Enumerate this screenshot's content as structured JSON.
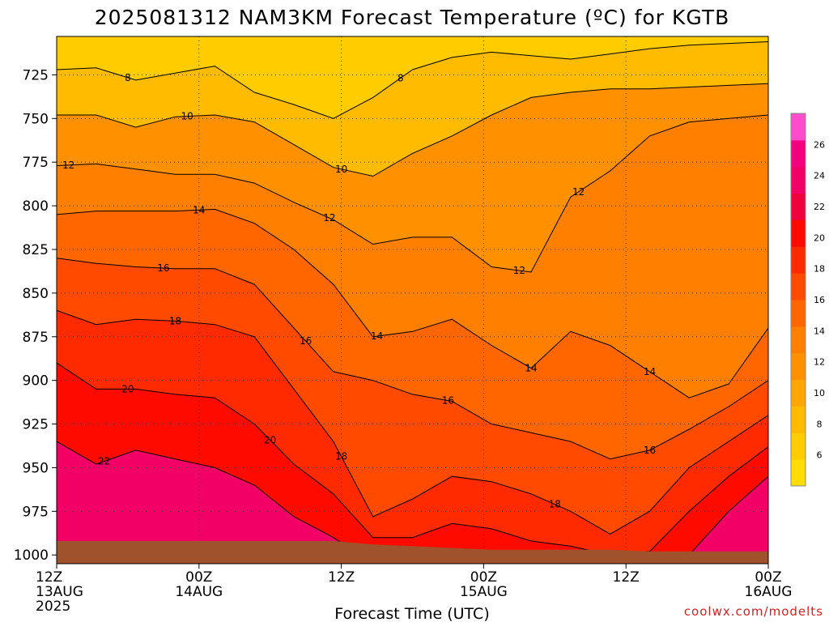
{
  "title": "2025081312 NAM3KM Forecast Temperature (ºC) for KGTB",
  "credit": "coolwx.com/modelts",
  "chart_data": {
    "type": "heatmap",
    "title": "2025081312 NAM3KM Forecast Temperature (ºC) for KGTB",
    "xlabel": "Forecast Time (UTC)",
    "ylabel": "",
    "x_ticks": [
      {
        "hours": 0,
        "lines": [
          "12Z",
          "13AUG",
          "2025"
        ]
      },
      {
        "hours": 12,
        "lines": [
          "00Z",
          "14AUG"
        ]
      },
      {
        "hours": 24,
        "lines": [
          "12Z"
        ]
      },
      {
        "hours": 36,
        "lines": [
          "00Z",
          "15AUG"
        ]
      },
      {
        "hours": 48,
        "lines": [
          "12Z"
        ]
      },
      {
        "hours": 60,
        "lines": [
          "00Z",
          "16AUG"
        ]
      }
    ],
    "y_ticks": [
      725,
      750,
      775,
      800,
      825,
      850,
      875,
      900,
      925,
      950,
      975,
      1000
    ],
    "xlim_hours": [
      0,
      60
    ],
    "ylim_hpa": [
      1005,
      703
    ],
    "grid": true,
    "colorbar": {
      "ticks": [
        6,
        8,
        10,
        12,
        14,
        16,
        18,
        20,
        22,
        24,
        26
      ],
      "range": [
        4,
        28
      ],
      "colors": [
        "#ffdd00",
        "#ffcc00",
        "#ffbb00",
        "#ffa600",
        "#ff9100",
        "#ff7f00",
        "#ff6600",
        "#ff4a00",
        "#ff2a00",
        "#ff0a00",
        "#f0003c",
        "#f20066",
        "#f5007f",
        "#ff4ccc"
      ]
    },
    "ground_color": "#a0522d",
    "contours": [
      {
        "value": 8,
        "hpa": [
          722,
          721,
          728,
          724,
          720,
          735,
          742,
          750,
          738,
          722,
          715,
          712,
          714,
          716,
          713,
          710,
          708,
          707,
          706
        ],
        "label_at_hours": [
          6,
          29
        ]
      },
      {
        "value": 10,
        "hpa": [
          748,
          748,
          755,
          749,
          748,
          752,
          765,
          778,
          783,
          770,
          760,
          748,
          738,
          735,
          733,
          733,
          732,
          731,
          730
        ],
        "label_at_hours": [
          11,
          24
        ]
      },
      {
        "value": 12,
        "hpa": [
          777,
          776,
          779,
          782,
          782,
          787,
          798,
          808,
          822,
          818,
          818,
          835,
          838,
          795,
          780,
          760,
          752,
          750,
          748
        ],
        "label_at_hours": [
          1,
          23,
          39,
          44
        ]
      },
      {
        "value": 14,
        "hpa": [
          805,
          803,
          803,
          803,
          802,
          810,
          825,
          845,
          875,
          872,
          865,
          880,
          893,
          872,
          880,
          895,
          910,
          902,
          870
        ],
        "label_at_hours": [
          12,
          27,
          40,
          50
        ]
      },
      {
        "value": 16,
        "hpa": [
          830,
          833,
          835,
          836,
          836,
          845,
          870,
          895,
          900,
          908,
          912,
          925,
          930,
          935,
          945,
          940,
          928,
          915,
          900
        ],
        "label_at_hours": [
          9,
          21,
          33,
          50
        ]
      },
      {
        "value": 18,
        "hpa": [
          860,
          868,
          865,
          866,
          868,
          875,
          905,
          935,
          978,
          968,
          955,
          958,
          965,
          975,
          988,
          975,
          950,
          935,
          920
        ],
        "label_at_hours": [
          10,
          24,
          42
        ]
      },
      {
        "value": 20,
        "hpa": [
          890,
          905,
          905,
          908,
          910,
          925,
          948,
          965,
          990,
          990,
          982,
          985,
          992,
          995,
          1000,
          998,
          975,
          955,
          938
        ],
        "label_at_hours": [
          6,
          18
        ]
      },
      {
        "value": 22,
        "hpa": [
          935,
          948,
          940,
          945,
          950,
          960,
          978,
          990,
          1005,
          1005,
          1005,
          1005,
          1005,
          1005,
          1005,
          1005,
          1000,
          975,
          955
        ],
        "label_at_hours": [
          4
        ]
      }
    ],
    "surface_hpa": [
      992,
      992,
      992,
      992,
      992,
      992,
      992,
      992,
      994,
      995,
      996,
      997,
      997,
      997,
      997,
      998,
      998,
      998,
      998
    ]
  }
}
